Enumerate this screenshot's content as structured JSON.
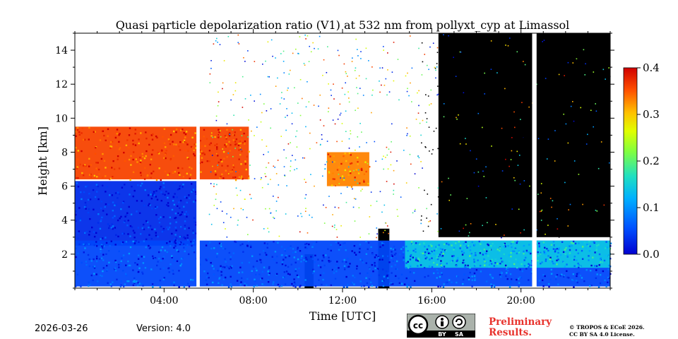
{
  "chart_data": {
    "type": "heatmap",
    "title": "Quasi particle depolarization ratio (V1) at 532 nm from pollyxt_cyp at Limassol",
    "xlabel": "Time [UTC]",
    "ylabel": "Height [km]",
    "x_unit": "hours UTC",
    "xlim": [
      0,
      24
    ],
    "ylim": [
      0,
      15
    ],
    "x_ticks": [
      4,
      8,
      12,
      16,
      20
    ],
    "x_tick_labels": [
      "04:00",
      "08:00",
      "12:00",
      "16:00",
      "20:00"
    ],
    "y_ticks": [
      2,
      4,
      6,
      8,
      10,
      12,
      14
    ],
    "y_tick_labels": [
      "2",
      "4",
      "6",
      "8",
      "10",
      "12",
      "14"
    ],
    "colorbar": {
      "min": 0.0,
      "max": 0.4,
      "ticks": [
        0.0,
        0.1,
        0.2,
        0.3,
        0.4
      ],
      "tick_labels": [
        "0.0",
        "0.1",
        "0.2",
        "0.3",
        "0.4"
      ],
      "colormap": "jet"
    },
    "layers": [
      {
        "name": "dust/ice layer upper",
        "t_start": 0.0,
        "t_end": 7.8,
        "h_bottom": 6.4,
        "h_top": 9.5,
        "value": 0.36
      },
      {
        "name": "afternoon cloud patches",
        "t_start": 11.3,
        "t_end": 13.2,
        "h_bottom": 6.0,
        "h_top": 8.0,
        "value": 0.33
      },
      {
        "name": "mid-level low values",
        "t_start": 0.0,
        "t_end": 5.5,
        "h_bottom": 2.5,
        "h_top": 6.3,
        "value": 0.03
      },
      {
        "name": "boundary layer aerosol",
        "t_start": 0.0,
        "t_end": 24.0,
        "h_bottom": 0.1,
        "h_top": 2.8,
        "value": 0.05
      },
      {
        "name": "evening aerosol layer",
        "t_start": 14.8,
        "t_end": 24.0,
        "h_bottom": 1.2,
        "h_top": 2.8,
        "value": 0.14
      }
    ],
    "no_signal_regions": [
      {
        "t_start": 16.3,
        "t_end": 24.0,
        "h_bottom": 3.0,
        "h_top": 15.0,
        "color": "#000000"
      },
      {
        "t_start": 10.3,
        "t_end": 10.7,
        "h_bottom": 0.0,
        "h_top": 2.0,
        "color": "#000000"
      },
      {
        "t_start": 13.6,
        "t_end": 14.1,
        "h_bottom": 0.0,
        "h_top": 3.5,
        "color": "#000000"
      }
    ],
    "data_gaps": [
      {
        "t_start": 5.45,
        "t_end": 5.6
      },
      {
        "t_start": 20.5,
        "t_end": 20.7
      }
    ]
  },
  "footer": {
    "date": "2026-03-26",
    "version": "Version: 4.0",
    "preliminary_line1": "Preliminary",
    "preliminary_line2": "Results.",
    "copyright_line1": "© TROPOS & ECoE 2026.",
    "copyright_line2": "CC BY SA 4.0 License.",
    "license_badge_by": "BY",
    "license_badge_sa": "SA"
  },
  "colors": {
    "no_signal": "#000000",
    "background": "#ffffff",
    "preliminary_text": "#e8322c"
  }
}
